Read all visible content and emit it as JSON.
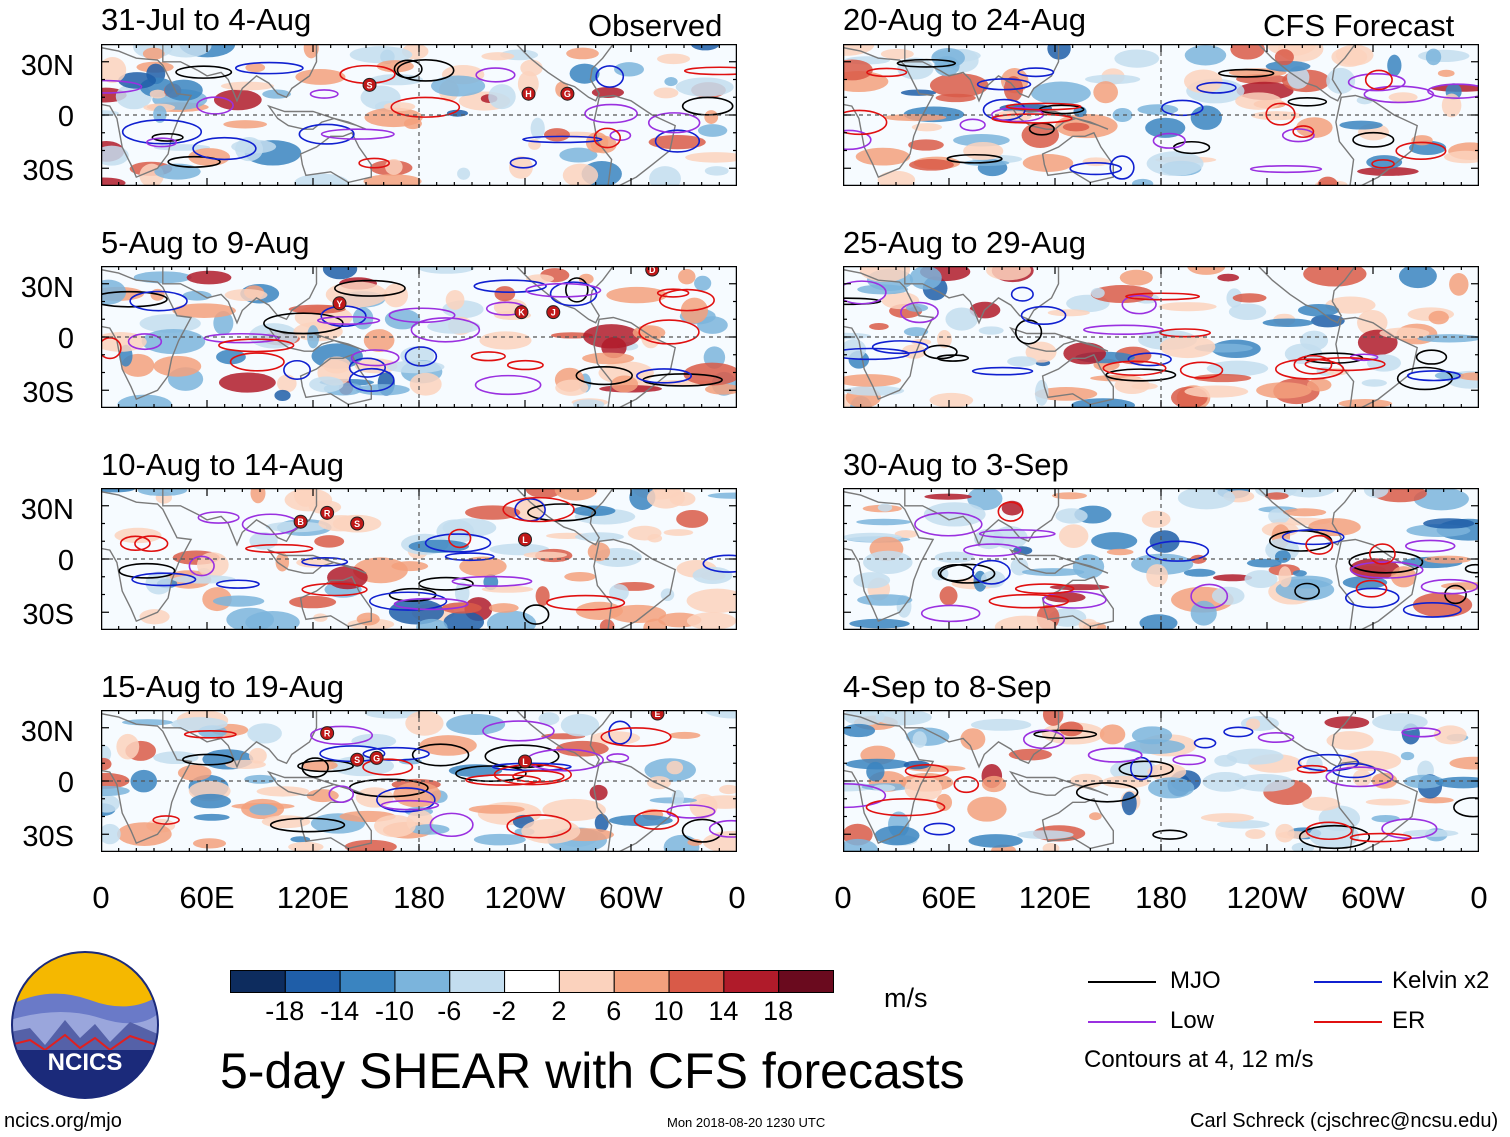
{
  "header": {
    "observed_label": "Observed",
    "forecast_label": "CFS Forecast"
  },
  "chart_data": {
    "type": "heatmap",
    "title": "5-day SHEAR with CFS forecasts",
    "units": "m/s",
    "x_ticks": [
      "0",
      "60E",
      "120E",
      "180",
      "120W",
      "60W",
      "0"
    ],
    "y_ticks": [
      "30N",
      "0",
      "30S"
    ],
    "panels": [
      {
        "column": "observed",
        "title": "31-Jul to 4-Aug",
        "storm_markers": [
          {
            "label": "S",
            "lon": 152,
            "lat": 17
          },
          {
            "label": "H",
            "lon": 242,
            "lat": 12
          },
          {
            "label": "G",
            "lon": 264,
            "lat": 12
          }
        ]
      },
      {
        "column": "observed",
        "title": "5-Aug to 9-Aug",
        "storm_markers": [
          {
            "label": "Y",
            "lon": 135,
            "lat": 19
          },
          {
            "label": "K",
            "lon": 238,
            "lat": 14
          },
          {
            "label": "J",
            "lon": 256,
            "lat": 14
          },
          {
            "label": "D",
            "lon": 312,
            "lat": 38
          }
        ]
      },
      {
        "column": "observed",
        "title": "10-Aug to 14-Aug",
        "storm_markers": [
          {
            "label": "B",
            "lon": 113,
            "lat": 21
          },
          {
            "label": "R",
            "lon": 128,
            "lat": 26
          },
          {
            "label": "S",
            "lon": 145,
            "lat": 20
          },
          {
            "label": "L",
            "lon": 240,
            "lat": 11
          }
        ]
      },
      {
        "column": "observed",
        "title": "15-Aug to 19-Aug",
        "storm_markers": [
          {
            "label": "R",
            "lon": 128,
            "lat": 27
          },
          {
            "label": "S",
            "lon": 145,
            "lat": 12
          },
          {
            "label": "G",
            "lon": 156,
            "lat": 13
          },
          {
            "label": "L",
            "lon": 240,
            "lat": 11
          },
          {
            "label": "E",
            "lon": 315,
            "lat": 38
          }
        ]
      },
      {
        "column": "forecast",
        "title": "20-Aug to 24-Aug",
        "storm_markers": []
      },
      {
        "column": "forecast",
        "title": "25-Aug to 29-Aug",
        "storm_markers": []
      },
      {
        "column": "forecast",
        "title": "30-Aug to 3-Sep",
        "storm_markers": []
      },
      {
        "column": "forecast",
        "title": "4-Sep to 8-Sep",
        "storm_markers": []
      }
    ],
    "colorbar": {
      "levels": [
        "-18",
        "-14",
        "-10",
        "-6",
        "-2",
        "2",
        "6",
        "10",
        "14",
        "18"
      ],
      "colors": [
        "#0d2c5e",
        "#1f5ea8",
        "#3a84c0",
        "#7bb4dc",
        "#c3ddef",
        "#ffffff",
        "#fbd2bd",
        "#f3a07d",
        "#d95a48",
        "#b01b2a",
        "#6a0a1e"
      ]
    },
    "legend": [
      {
        "name": "MJO",
        "color": "#000000"
      },
      {
        "name": "Kelvin x2",
        "color": "#1020d0"
      },
      {
        "name": "Low",
        "color": "#9a30e0"
      },
      {
        "name": "ER",
        "color": "#e01010"
      }
    ],
    "contour_note": "Contours at 4, 12 m/s"
  },
  "footer": {
    "logo_text": "NCICS",
    "url": "ncics.org/mjo",
    "timestamp": "Mon 2018-08-20 1230 UTC",
    "author": "Carl Schreck (cjschrec@ncsu.edu)"
  }
}
